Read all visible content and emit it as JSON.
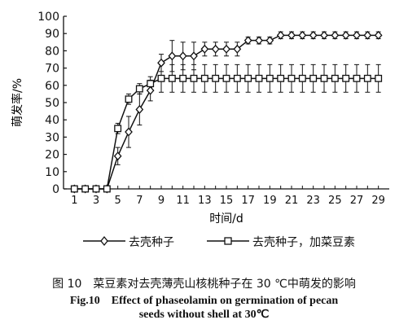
{
  "chart_data": {
    "type": "line",
    "xlabel": "时间/d",
    "ylabel": "萌发率/%",
    "xlim": [
      0,
      30
    ],
    "ylim": [
      0,
      100
    ],
    "x_ticks": [
      1,
      3,
      5,
      7,
      9,
      11,
      13,
      15,
      17,
      19,
      21,
      23,
      25,
      27,
      29
    ],
    "y_ticks": [
      0,
      10,
      20,
      30,
      40,
      50,
      60,
      70,
      80,
      90,
      100
    ],
    "legend_position": "bottom",
    "grid": false,
    "series": [
      {
        "name": "去壳种子",
        "marker": "diamond",
        "x": [
          1,
          2,
          3,
          4,
          5,
          6,
          7,
          8,
          9,
          10,
          11,
          12,
          13,
          14,
          15,
          16,
          17,
          18,
          19,
          20,
          21,
          22,
          23,
          24,
          25,
          26,
          27,
          28,
          29
        ],
        "values": [
          0,
          0,
          0,
          0,
          19,
          33,
          46,
          57,
          73,
          77,
          77,
          77,
          81,
          81,
          81,
          81,
          86,
          86,
          86,
          89,
          89,
          89,
          89,
          89,
          89,
          89,
          89,
          89,
          89
        ],
        "errors": [
          0,
          0,
          0,
          0,
          5,
          9,
          9,
          6,
          5,
          9,
          8,
          8,
          4,
          4,
          4,
          4,
          2,
          2,
          2,
          2,
          2,
          2,
          2,
          2,
          2,
          2,
          2,
          2,
          2
        ]
      },
      {
        "name": "去壳种子，加菜豆素",
        "marker": "square",
        "x": [
          1,
          2,
          3,
          4,
          5,
          6,
          7,
          8,
          9,
          10,
          11,
          12,
          13,
          14,
          15,
          16,
          17,
          18,
          19,
          20,
          21,
          22,
          23,
          24,
          25,
          26,
          27,
          28,
          29
        ],
        "values": [
          0,
          0,
          0,
          0,
          35,
          52,
          58,
          61,
          64,
          64,
          64,
          64,
          64,
          64,
          64,
          64,
          64,
          64,
          64,
          64,
          64,
          64,
          64,
          64,
          64,
          64,
          64,
          64,
          64
        ],
        "errors": [
          0,
          0,
          0,
          0,
          3,
          3,
          3,
          4,
          8,
          8,
          8,
          8,
          8,
          8,
          8,
          8,
          8,
          8,
          8,
          8,
          8,
          8,
          8,
          8,
          8,
          8,
          8,
          8,
          8
        ]
      }
    ]
  },
  "caption": {
    "zh": "图 10　菜豆素对去壳薄壳山核桃种子在 30 ℃中萌发的影响",
    "en_line1": "Fig.10　Effect of phaseolamin on germination of pecan",
    "en_line2": "seeds without shell at 30℃"
  }
}
